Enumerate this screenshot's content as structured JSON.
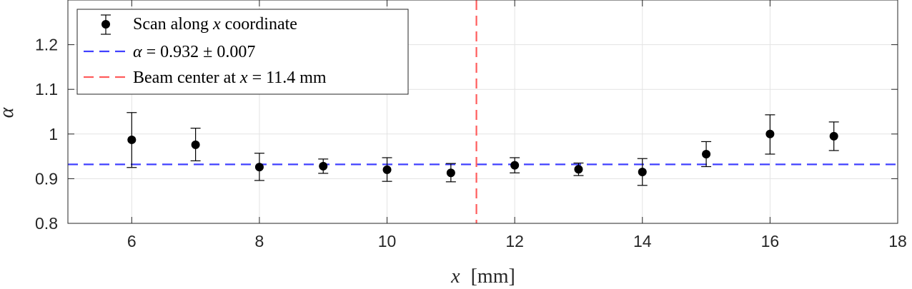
{
  "chart_data": {
    "type": "scatter",
    "xlabel_var": "x",
    "xlabel_unit": "[mm]",
    "ylabel": "α",
    "xlim": [
      5,
      18
    ],
    "ylim": [
      0.8,
      1.3
    ],
    "xticks": [
      6,
      8,
      10,
      12,
      14,
      16,
      18
    ],
    "yticks": [
      0.8,
      0.9,
      1,
      1.1,
      1.2
    ],
    "ytick_labels": [
      "0.8",
      "0.9",
      "1",
      "1.1",
      "1.2"
    ],
    "grid": true,
    "legend_position": "top-left",
    "series": [
      {
        "name": "Scan along x coordinate",
        "kind": "errorbar",
        "color": "#000000",
        "x": [
          6,
          7,
          8,
          9,
          10,
          11,
          12,
          13,
          14,
          15,
          16,
          17
        ],
        "y": [
          0.987,
          0.976,
          0.926,
          0.928,
          0.92,
          0.913,
          0.93,
          0.921,
          0.915,
          0.955,
          1.0,
          0.995
        ],
        "yerr_low": [
          0.062,
          0.036,
          0.03,
          0.016,
          0.026,
          0.02,
          0.017,
          0.014,
          0.03,
          0.028,
          0.045,
          0.032
        ],
        "yerr_high": [
          0.061,
          0.037,
          0.031,
          0.016,
          0.027,
          0.021,
          0.017,
          0.014,
          0.03,
          0.028,
          0.043,
          0.032
        ]
      },
      {
        "name": "α = 0.932 ± 0.007",
        "kind": "hline",
        "color": "#4040ff",
        "y": 0.932
      },
      {
        "name": "Beam center at x = 11.4 mm",
        "kind": "vline",
        "color": "#ff5c5c",
        "x": 11.4
      }
    ]
  }
}
